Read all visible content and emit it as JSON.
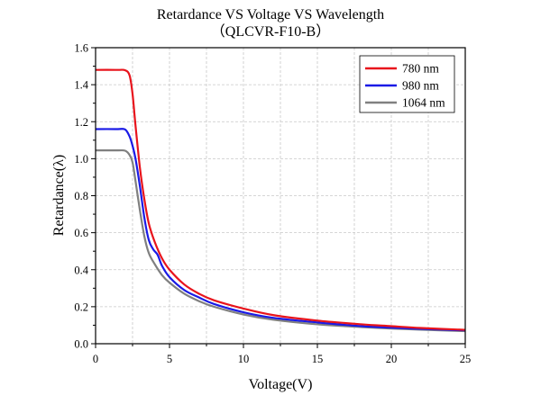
{
  "chart_data": {
    "type": "line",
    "title": "Retardance VS Voltage VS Wavelength",
    "subtitle": "（QLCVR-F10-B）",
    "xlabel": "Voltage(V)",
    "ylabel": "Retardance(λ)",
    "xlim": [
      0,
      25
    ],
    "ylim": [
      0,
      1.6
    ],
    "xticks": [
      "0",
      "5",
      "10",
      "15",
      "20",
      "25"
    ],
    "yticks": [
      "0.0",
      "0.2",
      "0.4",
      "0.6",
      "0.8",
      "1.0",
      "1.2",
      "1.4",
      "1.6"
    ],
    "grid": true,
    "legend_position": "top-right",
    "series": [
      {
        "name": "780 nm",
        "color": "#e8141c",
        "x": [
          0,
          1.5,
          2.0,
          2.3,
          2.5,
          2.7,
          3.0,
          3.3,
          3.6,
          4.0,
          4.5,
          5.0,
          6.0,
          7.0,
          8.0,
          10.0,
          12.0,
          15.0,
          18.0,
          20.0,
          22.0,
          25.0
        ],
        "y": [
          1.48,
          1.48,
          1.478,
          1.45,
          1.35,
          1.18,
          0.95,
          0.78,
          0.65,
          0.55,
          0.46,
          0.4,
          0.32,
          0.27,
          0.235,
          0.19,
          0.155,
          0.125,
          0.105,
          0.095,
          0.085,
          0.075
        ]
      },
      {
        "name": "980 nm",
        "color": "#1a1ae6",
        "x": [
          0,
          1.5,
          2.0,
          2.3,
          2.5,
          2.7,
          3.0,
          3.3,
          3.6,
          3.9,
          4.2,
          4.5,
          5.0,
          6.0,
          7.0,
          8.0,
          10.0,
          12.0,
          15.0,
          18.0,
          20.0,
          22.0,
          25.0
        ],
        "y": [
          1.16,
          1.16,
          1.158,
          1.12,
          1.07,
          1.0,
          0.85,
          0.68,
          0.56,
          0.51,
          0.48,
          0.42,
          0.36,
          0.29,
          0.25,
          0.215,
          0.17,
          0.14,
          0.115,
          0.095,
          0.087,
          0.08,
          0.072
        ]
      },
      {
        "name": "1064 nm",
        "color": "#808080",
        "x": [
          0,
          1.5,
          2.0,
          2.3,
          2.5,
          2.7,
          3.0,
          3.3,
          3.6,
          4.0,
          4.5,
          5.0,
          6.0,
          7.0,
          8.0,
          10.0,
          12.0,
          15.0,
          18.0,
          20.0,
          22.0,
          25.0
        ],
        "y": [
          1.045,
          1.045,
          1.043,
          1.02,
          0.98,
          0.88,
          0.72,
          0.58,
          0.49,
          0.43,
          0.37,
          0.33,
          0.27,
          0.23,
          0.2,
          0.158,
          0.13,
          0.105,
          0.09,
          0.082,
          0.076,
          0.068
        ]
      }
    ]
  }
}
